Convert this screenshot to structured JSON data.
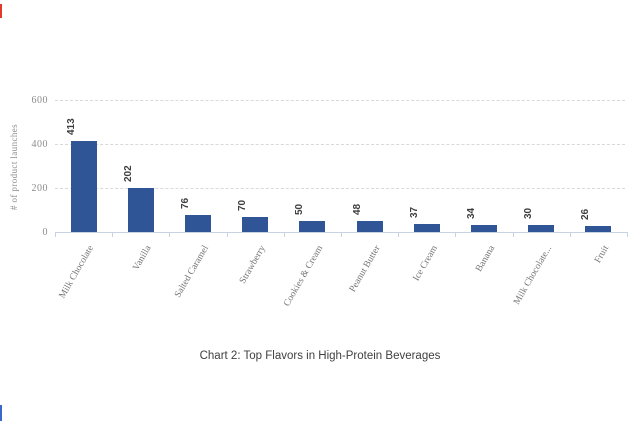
{
  "edge_marks": {
    "top_left_color": "#E03A2C",
    "bottom_left_color": "#3A67C8"
  },
  "caption": {
    "text": "Chart 2: Top Flavors in High-Protein Beverages",
    "color": "#3F3F3F"
  },
  "chart_data": {
    "type": "bar",
    "title": "",
    "categories": [
      "Milk Chocolate",
      "Vanilla",
      "Salted Caramel",
      "Strawberry",
      "Cookies & Cream",
      "Peanut Butter",
      "Ice Cream",
      "Banana",
      "Milk Chocolate...",
      "Fruit"
    ],
    "values": [
      413,
      202,
      76,
      70,
      50,
      48,
      37,
      34,
      30,
      26
    ],
    "value_labels_shown": true,
    "value_label_orientation": "vertical",
    "category_label_rotation_deg": -60,
    "xlabel": "",
    "ylabel": "# of product launches",
    "yticks": [
      0,
      200,
      400,
      600
    ],
    "ylim": [
      0,
      600
    ],
    "grid": "horizontal-dashed",
    "legend": "none",
    "colors": {
      "bar": "#2F5597",
      "gridline": "#D9D9D9",
      "axis_line": "#C9D2E0",
      "tick_label": "#8C8C8C",
      "category_label": "#767676",
      "value_label": "#3F3F3F"
    }
  }
}
